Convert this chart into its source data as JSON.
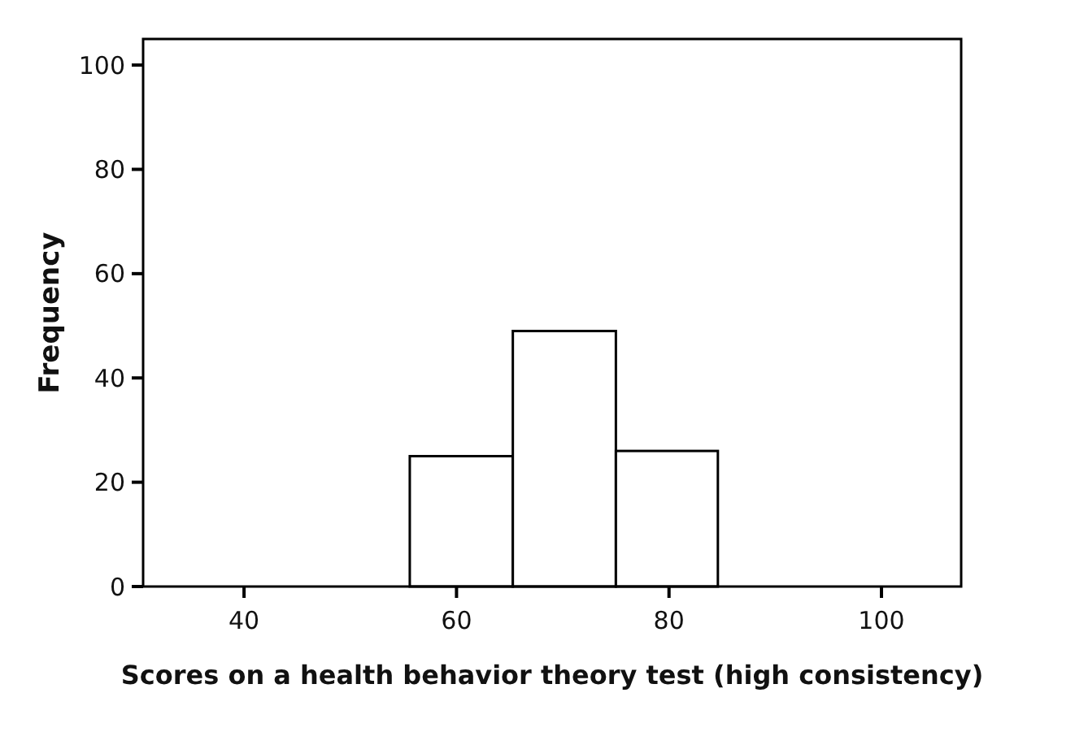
{
  "chart_data": {
    "type": "histogram",
    "xlabel": "Scores on a health behavior theory test (high consistency)",
    "ylabel": "Frequency",
    "bins": [
      55.6,
      65.3,
      75,
      84.6
    ],
    "values": [
      25,
      49,
      26
    ],
    "color": "#ffffff",
    "xlim": [
      30.5,
      107.5
    ],
    "xticks": [
      40,
      60,
      80,
      100
    ],
    "ylim": [
      0,
      105
    ],
    "yticks": [
      0,
      20,
      40,
      60,
      80,
      100
    ],
    "grid": false
  }
}
